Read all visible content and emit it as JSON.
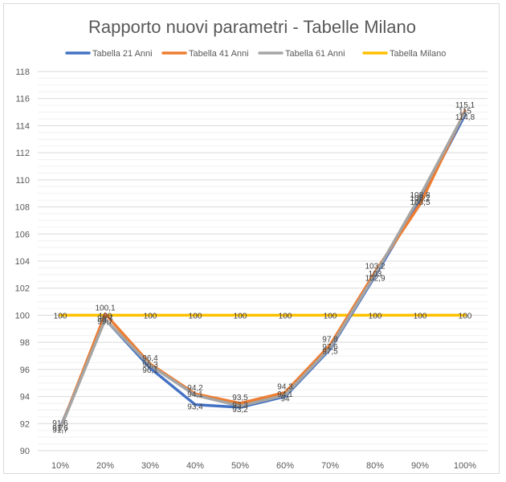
{
  "chart_data": {
    "type": "line",
    "title": "Rapporto nuovi parametri - Tabelle Milano",
    "categories": [
      "10%",
      "20%",
      "30%",
      "40%",
      "50%",
      "60%",
      "70%",
      "80%",
      "90%",
      "100%"
    ],
    "ylim": [
      90,
      118
    ],
    "yticks": [
      90,
      92,
      94,
      96,
      98,
      100,
      102,
      104,
      106,
      108,
      110,
      112,
      114,
      116,
      118
    ],
    "grid": true,
    "legend_position": "top",
    "series": [
      {
        "name": "Tabella 21 Anni",
        "color": "#4472C4",
        "values": [
          91.7,
          99.7,
          96.1,
          93.4,
          93.2,
          94.0,
          97.5,
          102.9,
          108.5,
          114.8
        ]
      },
      {
        "name": "Tabella 41 Anni",
        "color": "#ED7D31",
        "values": [
          91.6,
          100.1,
          96.4,
          94.2,
          93.5,
          94.3,
          97.8,
          103.2,
          108.2,
          115.1
        ]
      },
      {
        "name": "Tabella 61 Anni",
        "color": "#A5A5A5",
        "values": [
          91.6,
          99.7,
          96.3,
          94.1,
          93.3,
          94.1,
          97.6,
          103.0,
          108.8,
          115.0
        ]
      },
      {
        "name": "Tabella Milano",
        "color": "#FFC000",
        "values": [
          100,
          100,
          100,
          100,
          100,
          100,
          100,
          100,
          100,
          100
        ]
      }
    ],
    "data_labels": [
      [
        "91,7",
        "99,7",
        "96,1",
        "93,4",
        "93,2",
        "94",
        "97,5",
        "102,9",
        "108,5",
        "114,8"
      ],
      [
        "91,6",
        "100,1",
        "96,4",
        "94,2",
        "93,5",
        "94,3",
        "97,8",
        "103,2",
        "108,2",
        "115,1"
      ],
      [
        "91,6",
        "99,7",
        "96,3",
        "94,1",
        "93,3",
        "94,1",
        "97,6",
        "103",
        "108,8",
        "115"
      ],
      [
        "100",
        "100",
        "100",
        "100",
        "100",
        "100",
        "100",
        "100",
        "100",
        "100"
      ]
    ]
  }
}
